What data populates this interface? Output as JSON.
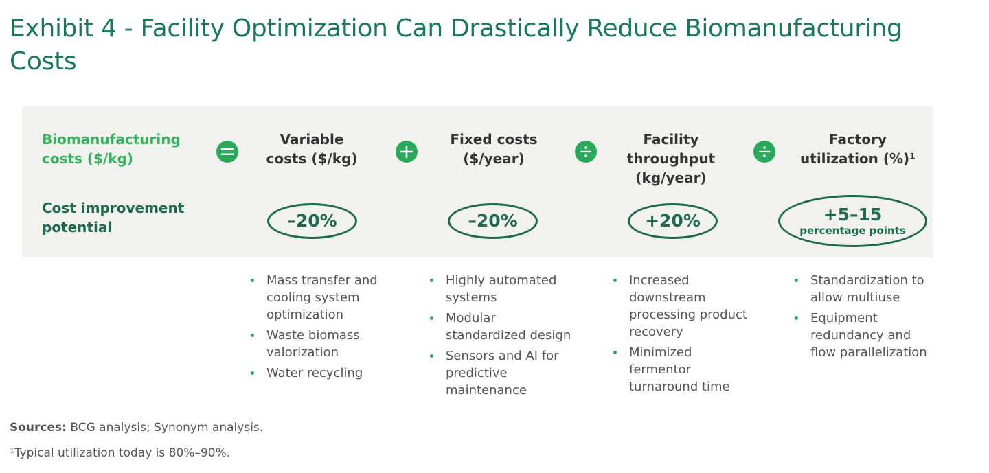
{
  "title": "Exhibit 4 - Facility Optimization Can Drastically Reduce Biomanufacturing Costs",
  "row_labels": {
    "formula_line1": "Biomanufacturing",
    "formula_line2": "costs ($/kg)",
    "improvement_line1": "Cost improvement",
    "improvement_line2": "potential"
  },
  "operators": [
    "equals",
    "plus",
    "divide",
    "divide"
  ],
  "columns": [
    {
      "head": [
        "Variable",
        "costs ($/kg)"
      ],
      "improvement": "–20%",
      "improvement_sub": "",
      "bullets": [
        [
          "Mass transfer and",
          "cooling system",
          "optimization"
        ],
        [
          "Waste biomass",
          "valorization"
        ],
        [
          "Water recycling"
        ]
      ]
    },
    {
      "head": [
        "Fixed costs",
        "($/year)"
      ],
      "improvement": "–20%",
      "improvement_sub": "",
      "bullets": [
        [
          "Highly automated",
          "systems"
        ],
        [
          "Modular",
          "standardized design"
        ],
        [
          "Sensors and AI for",
          "predictive",
          "maintenance"
        ]
      ]
    },
    {
      "head": [
        "Facility",
        "throughput",
        "(kg/year)"
      ],
      "improvement": "+20%",
      "improvement_sub": "",
      "bullets": [
        [
          "Increased",
          "downstream",
          "processing product",
          "recovery"
        ],
        [
          "Minimized",
          "fermentor",
          "turnaround time"
        ]
      ]
    },
    {
      "head": [
        "Factory",
        "utilization (%)¹"
      ],
      "improvement": "+5–15",
      "improvement_sub": "percentage points",
      "bullets": [
        [
          "Standardization to",
          "allow multiuse"
        ],
        [
          "Equipment",
          "redundancy and",
          "flow parallelization"
        ]
      ]
    }
  ],
  "sources_label": "Sources:",
  "sources_text": " BCG analysis; Synonym analysis.",
  "footnote": "¹Typical utilization today is 80%–90%.",
  "colors": {
    "title": "#177b57",
    "accent_green": "#32b35a",
    "dark_green": "#1d6b4c",
    "panel_bg": "#f1f1f0"
  }
}
